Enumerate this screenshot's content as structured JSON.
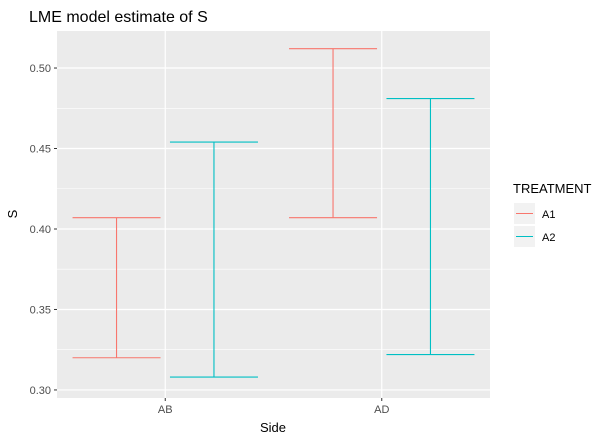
{
  "chart_data": {
    "type": "errorbar",
    "title": "LME model estimate of S",
    "xlabel": "Side",
    "ylabel": "S",
    "categories": [
      "AB",
      "AD"
    ],
    "ylim": [
      0.295,
      0.523
    ],
    "yticks": [
      0.3,
      0.35,
      0.4,
      0.45,
      0.5
    ],
    "ytick_labels": [
      "0.30",
      "0.35",
      "0.40",
      "0.45",
      "0.50"
    ],
    "grid": true,
    "legend": {
      "title": "TREATMENT",
      "position": "right",
      "entries": [
        "A1",
        "A2"
      ]
    },
    "series": [
      {
        "name": "A1",
        "color": "#F8766D",
        "intervals": [
          {
            "category": "AB",
            "lower": 0.32,
            "upper": 0.407
          },
          {
            "category": "AD",
            "lower": 0.407,
            "upper": 0.512
          }
        ]
      },
      {
        "name": "A2",
        "color": "#00BFC4",
        "intervals": [
          {
            "category": "AB",
            "lower": 0.308,
            "upper": 0.454
          },
          {
            "category": "AD",
            "lower": 0.322,
            "upper": 0.481
          }
        ]
      }
    ]
  }
}
